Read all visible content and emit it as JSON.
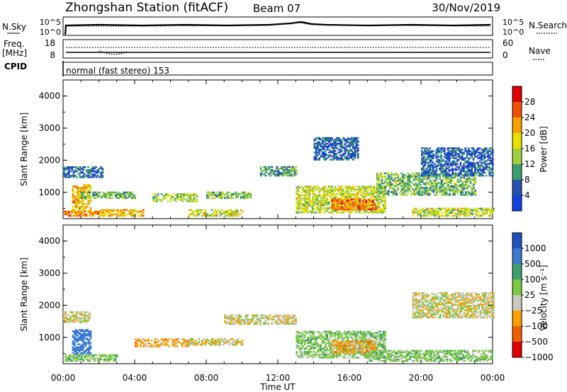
{
  "header": {
    "station": "Zhongshan Station (fitACF)",
    "beam": "Beam 07",
    "date": "30/Nov/2019"
  },
  "top_panels": {
    "nsky_label": "N.Sky",
    "nsky_ticks": [
      "10^5",
      "10^0"
    ],
    "nsearch_label": "N.Search",
    "nsearch_ticks": [
      "10^5",
      "10^0"
    ],
    "freq_label_1": "Freq.",
    "freq_label_2": "[MHz]",
    "freq_ticks": [
      "18",
      "8"
    ],
    "nave_label": "Nave",
    "nave_ticks": [
      "60",
      "0"
    ],
    "cpid_label": "CPID",
    "cpid_text": "normal (fast stereo) 153"
  },
  "power_colorbar": {
    "label": "Power [dB]",
    "ticks": [
      "28",
      "24",
      "20",
      "16",
      "12",
      "8",
      "4"
    ],
    "colors": [
      "#e00000",
      "#f05000",
      "#f7a000",
      "#e8e000",
      "#a0d040",
      "#3a9e6e",
      "#2850b0",
      "#1040e0"
    ]
  },
  "velocity_colorbar": {
    "label": "Velocity [m s⁻¹]",
    "ticks": [
      "1000",
      "500",
      "100",
      "25",
      "−25",
      "−100",
      "−500",
      "−1000"
    ],
    "colors": [
      "#2050c0",
      "#3a7ad0",
      "#3a9e6e",
      "#7ac943",
      "#c8c8bc",
      "#f7a000",
      "#f06000",
      "#e00000"
    ]
  },
  "axes": {
    "ylabel": "Slant Range [km]",
    "xlabel": "Time UT",
    "y_ticks": [
      "1000",
      "2000",
      "3000",
      "4000"
    ],
    "x_ticks": [
      "00:00",
      "04:00",
      "08:00",
      "12:00",
      "16:00",
      "20:00",
      "00:00"
    ]
  },
  "chart_data": [
    {
      "type": "heatmap",
      "panel": "power",
      "title": "",
      "xlabel": "",
      "ylabel": "Slant Range [km]",
      "xlim": [
        0,
        24
      ],
      "ylim": [
        180,
        4500
      ],
      "colorscale": "Power [dB]",
      "regions": [
        {
          "t": [
            0.0,
            2.0
          ],
          "r": [
            250,
            400
          ],
          "level": 24
        },
        {
          "t": [
            0.5,
            1.5
          ],
          "r": [
            400,
            1250
          ],
          "level": 20
        },
        {
          "t": [
            0.0,
            2.2
          ],
          "r": [
            1450,
            1800
          ],
          "level": 6
        },
        {
          "t": [
            1.0,
            4.0
          ],
          "r": [
            800,
            1000
          ],
          "level": 12
        },
        {
          "t": [
            2.0,
            4.5
          ],
          "r": [
            250,
            450
          ],
          "level": 20
        },
        {
          "t": [
            5.0,
            7.5
          ],
          "r": [
            700,
            950
          ],
          "level": 14
        },
        {
          "t": [
            8.0,
            10.5
          ],
          "r": [
            800,
            1000
          ],
          "level": 12
        },
        {
          "t": [
            7.0,
            10.0
          ],
          "r": [
            250,
            450
          ],
          "level": 16
        },
        {
          "t": [
            11.0,
            13.0
          ],
          "r": [
            1500,
            1800
          ],
          "level": 10
        },
        {
          "t": [
            13.0,
            18.0
          ],
          "r": [
            350,
            1200
          ],
          "level": 16
        },
        {
          "t": [
            15.0,
            17.5
          ],
          "r": [
            450,
            800
          ],
          "level": 24
        },
        {
          "t": [
            14.0,
            16.5
          ],
          "r": [
            2000,
            2700
          ],
          "level": 6
        },
        {
          "t": [
            17.5,
            23.0
          ],
          "r": [
            900,
            1600
          ],
          "level": 12
        },
        {
          "t": [
            19.5,
            24.0
          ],
          "r": [
            250,
            500
          ],
          "level": 16
        },
        {
          "t": [
            20.0,
            24.0
          ],
          "r": [
            1500,
            2400
          ],
          "level": 6
        }
      ]
    },
    {
      "type": "heatmap",
      "panel": "velocity",
      "title": "",
      "xlabel": "Time UT",
      "ylabel": "Slant Range [km]",
      "xlim": [
        0,
        24
      ],
      "ylim": [
        180,
        4500
      ],
      "colorscale": "Velocity [m s⁻¹]",
      "regions": [
        {
          "t": [
            0.5,
            1.5
          ],
          "r": [
            450,
            1250
          ],
          "level": 700
        },
        {
          "t": [
            0.0,
            3.0
          ],
          "r": [
            250,
            450
          ],
          "level": 60
        },
        {
          "t": [
            0.0,
            1.5
          ],
          "r": [
            1450,
            1800
          ],
          "level": 0
        },
        {
          "t": [
            4.0,
            7.0
          ],
          "r": [
            700,
            950
          ],
          "level": -60
        },
        {
          "t": [
            7.0,
            10.0
          ],
          "r": [
            750,
            950
          ],
          "level": 0
        },
        {
          "t": [
            9.0,
            13.0
          ],
          "r": [
            1400,
            1700
          ],
          "level": 0
        },
        {
          "t": [
            13.0,
            18.0
          ],
          "r": [
            350,
            1200
          ],
          "level": 60
        },
        {
          "t": [
            15.0,
            17.5
          ],
          "r": [
            500,
            900
          ],
          "level": -60
        },
        {
          "t": [
            17.0,
            24.0
          ],
          "r": [
            250,
            600
          ],
          "level": 60
        },
        {
          "t": [
            19.5,
            24.0
          ],
          "r": [
            1600,
            2400
          ],
          "level": 0
        }
      ]
    }
  ]
}
